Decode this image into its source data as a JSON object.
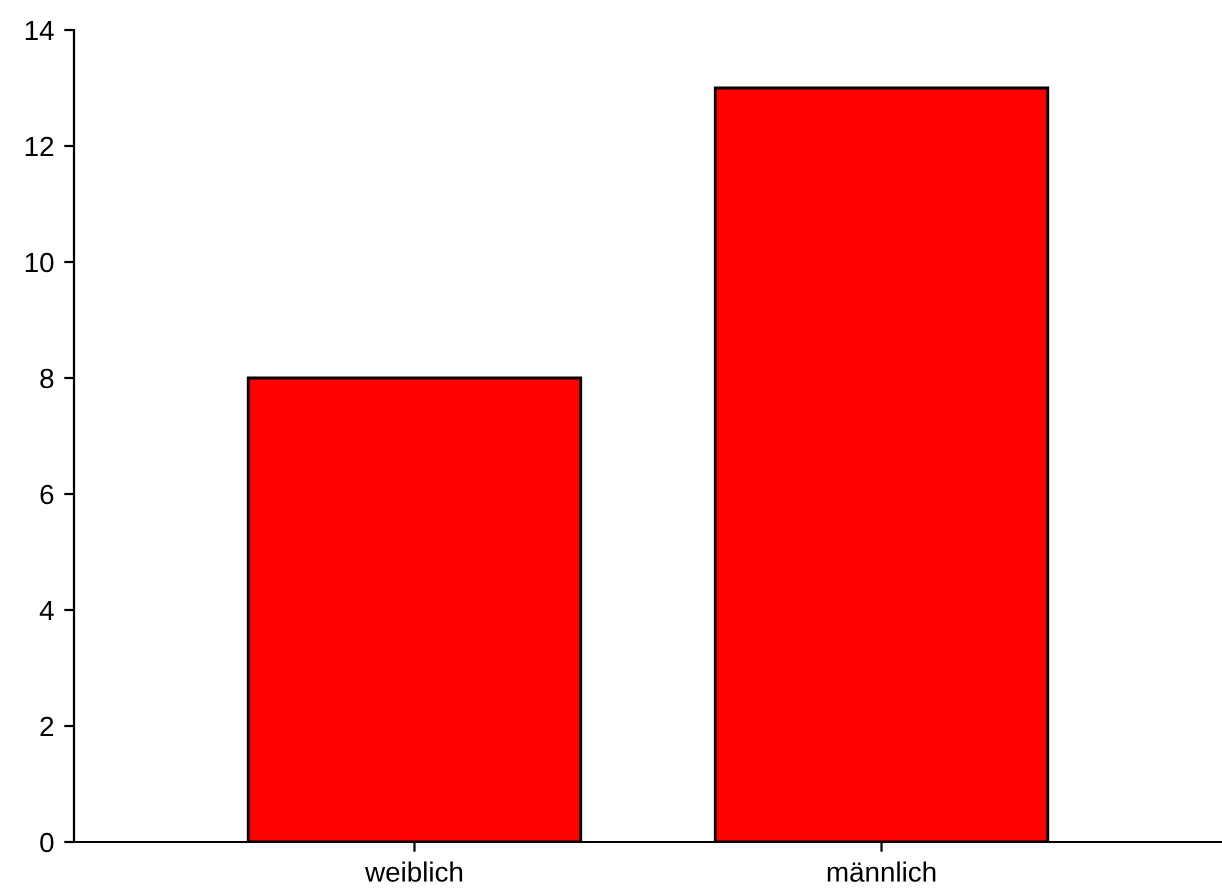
{
  "chart_data": {
    "type": "bar",
    "categories": [
      "weiblich",
      "männlich"
    ],
    "values": [
      8,
      13
    ],
    "color": "#ff0000",
    "ylim": [
      0,
      14
    ],
    "yticks": [
      0,
      2,
      4,
      6,
      8,
      10,
      12,
      14
    ],
    "grid": false,
    "legend": false
  }
}
